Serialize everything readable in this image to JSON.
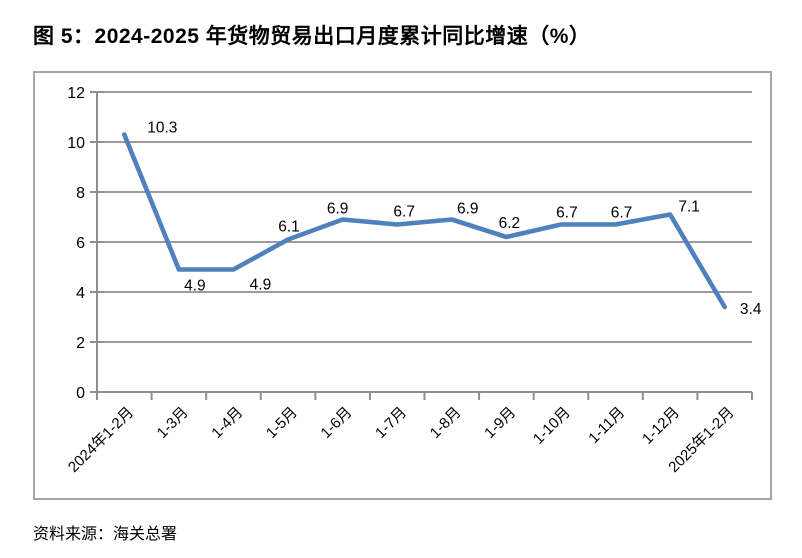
{
  "page": {
    "title": "图 5：2024-2025 年货物贸易出口月度累计同比增速（%）",
    "source": "资料来源：海关总署"
  },
  "chart_data": {
    "type": "line",
    "title": "图 5：2024-2025 年货物贸易出口月度累计同比增速（%）",
    "categories": [
      "2024年1-2月",
      "1-3月",
      "1-4月",
      "1-5月",
      "1-6月",
      "1-7月",
      "1-8月",
      "1-9月",
      "1-10月",
      "1-11月",
      "1-12月",
      "2025年1-2月"
    ],
    "values": [
      10.3,
      4.9,
      4.9,
      6.1,
      6.9,
      6.7,
      6.9,
      6.2,
      6.7,
      6.7,
      7.1,
      3.4
    ],
    "xlabel": "",
    "ylabel": "",
    "ylim": [
      0,
      12
    ],
    "yticks": [
      0,
      2,
      4,
      6,
      8,
      10,
      12
    ],
    "grid": true,
    "legend": "none",
    "data_labels_visible": true,
    "source": "资料来源：海关总署",
    "colors": {
      "line": "#4F81BD",
      "grid": "#8E8E8E",
      "axis": "#8E8E8E",
      "border": "#A6A6A6",
      "text": "#000000"
    }
  }
}
